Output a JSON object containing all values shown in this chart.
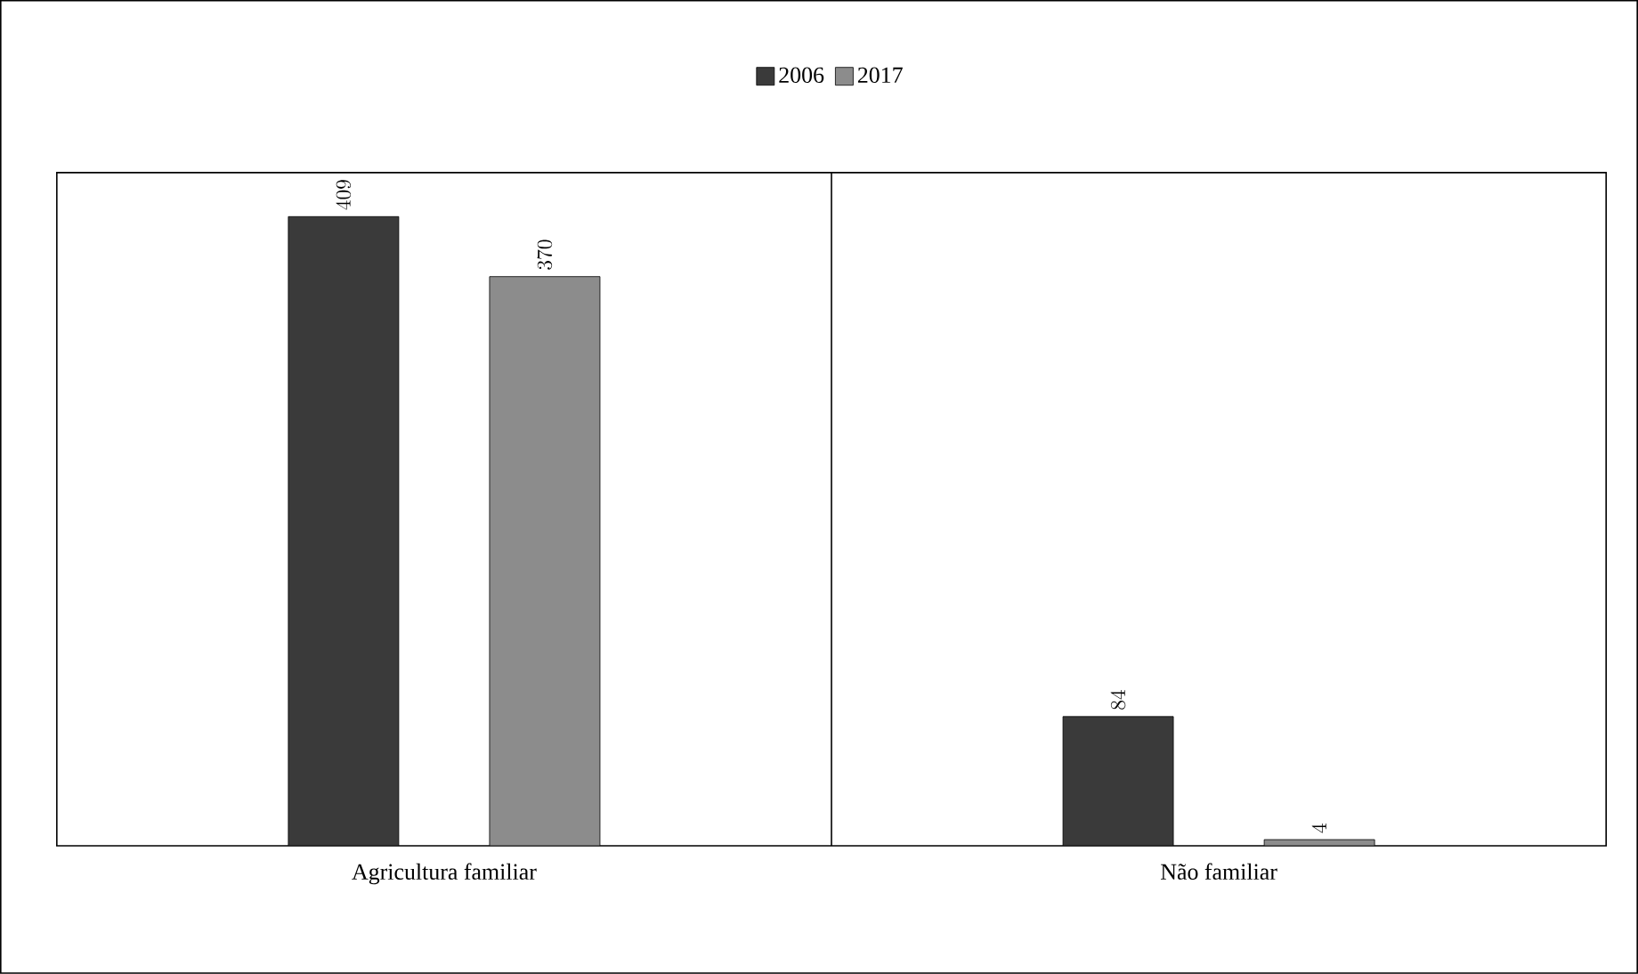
{
  "chart_data": {
    "type": "bar",
    "categories": [
      "Agricultura familiar",
      "Não familiar"
    ],
    "series": [
      {
        "name": "2006",
        "color": "#3a3a3a",
        "values": [
          409,
          84
        ]
      },
      {
        "name": "2017",
        "color": "#8c8c8c",
        "values": [
          370,
          4
        ]
      }
    ],
    "data_labels": true,
    "legend": "top",
    "relative": false
  }
}
